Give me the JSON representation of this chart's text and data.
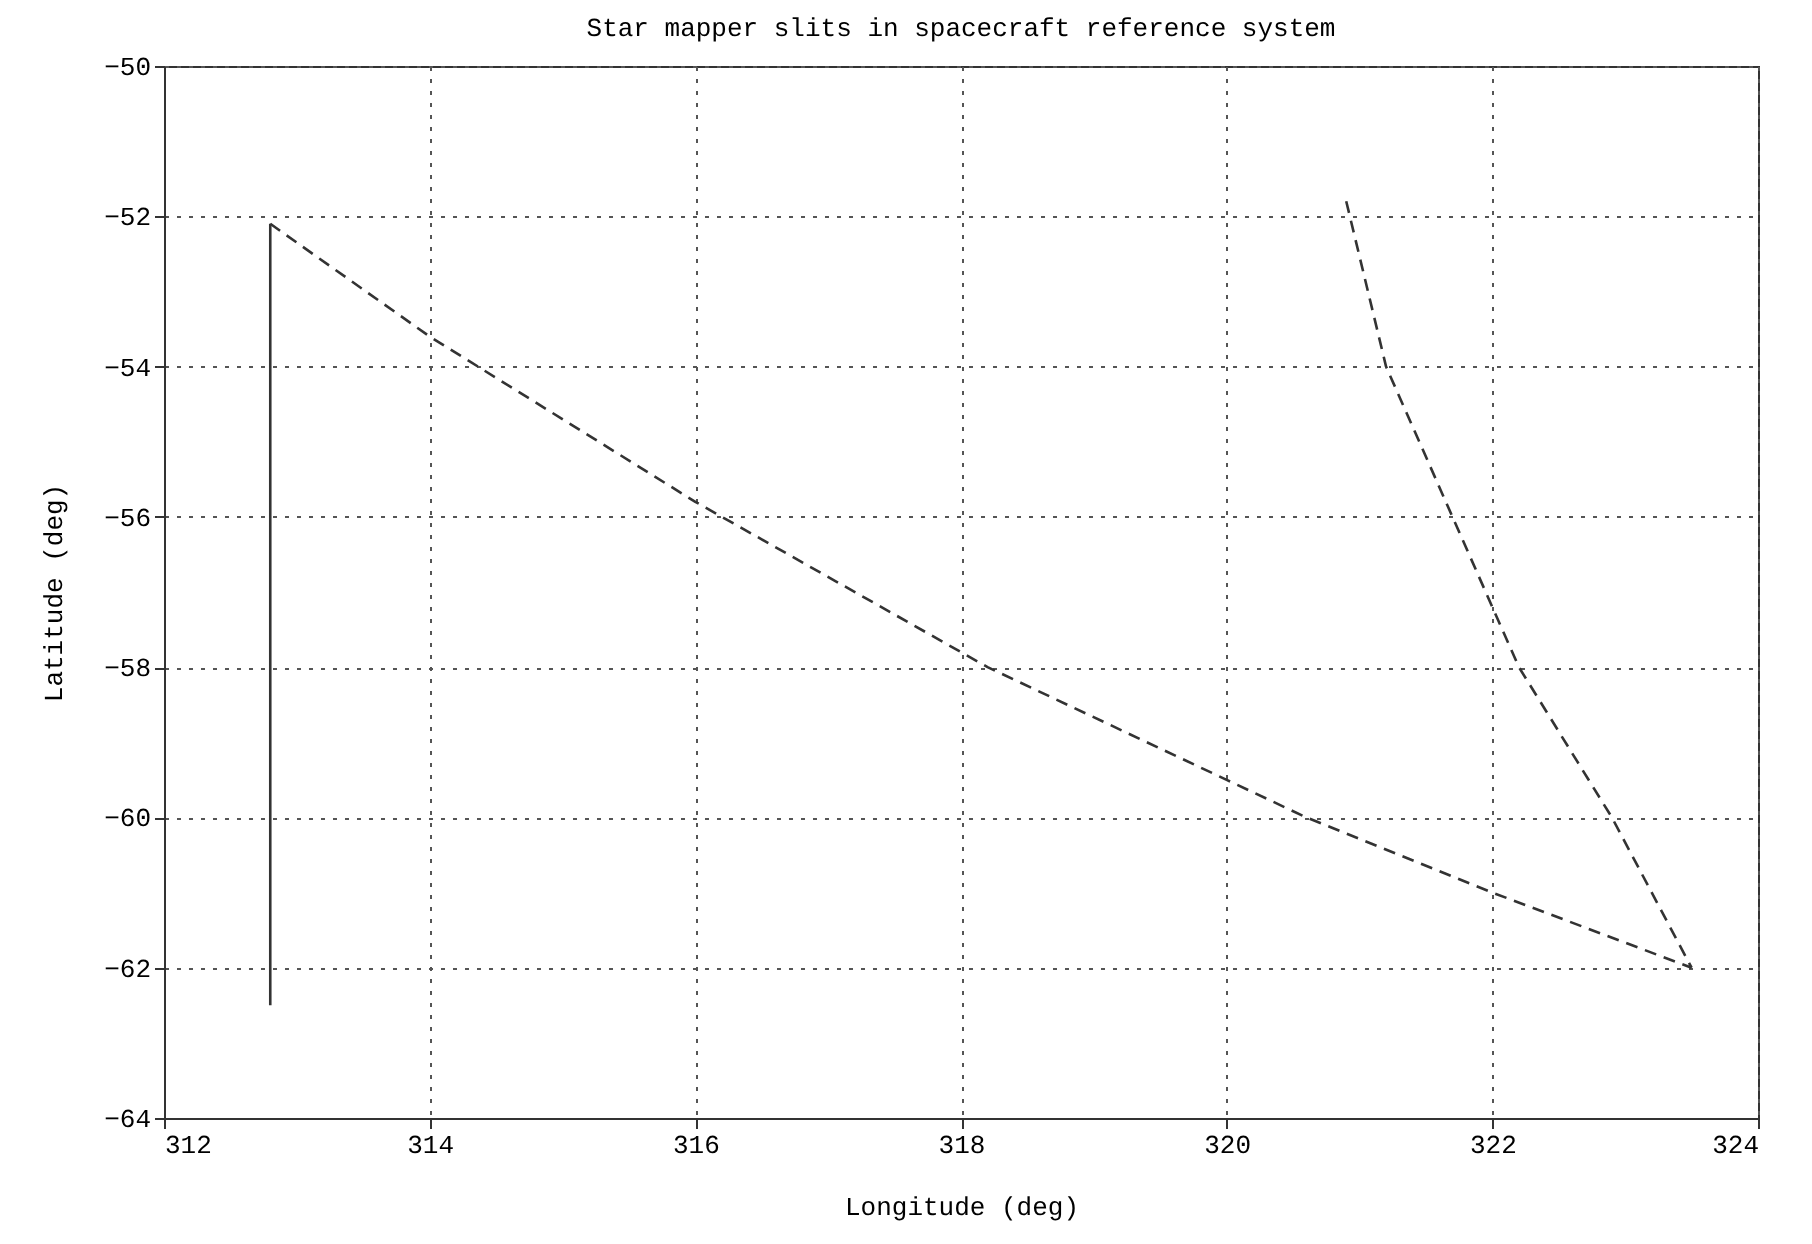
{
  "chart_data": {
    "type": "line",
    "title": "Star mapper slits in spacecraft reference system",
    "xlabel": "Longitude (deg)",
    "ylabel": "Latitude (deg)",
    "xlim": [
      312,
      324
    ],
    "xticks": [
      312,
      314,
      316,
      318,
      320,
      322,
      324
    ],
    "ylim": [
      -64,
      -50
    ],
    "yticks": [
      -64,
      -62,
      -60,
      -58,
      -56,
      -54,
      -52,
      -50
    ],
    "grid": true,
    "series": [
      {
        "color": "#333333",
        "line_style": "solid",
        "x": [
          312.8,
          312.8
        ],
        "values": [
          -62.5,
          -52.1
        ]
      },
      {
        "color": "#333333",
        "line_style": "dashed",
        "x": [
          312.8,
          314,
          316,
          318.2,
          320,
          320.6,
          322,
          323.5
        ],
        "values": [
          -52.1,
          -53.6,
          -55.8,
          -58,
          -59.5,
          -60,
          -61,
          -62
        ]
      },
      {
        "color": "#333333",
        "line_style": "dashed",
        "x": [
          320.9,
          321.2,
          321.7,
          322.2,
          322.9,
          323.5
        ],
        "values": [
          -51.8,
          -54,
          -56,
          -58,
          -60,
          -62
        ]
      }
    ]
  }
}
